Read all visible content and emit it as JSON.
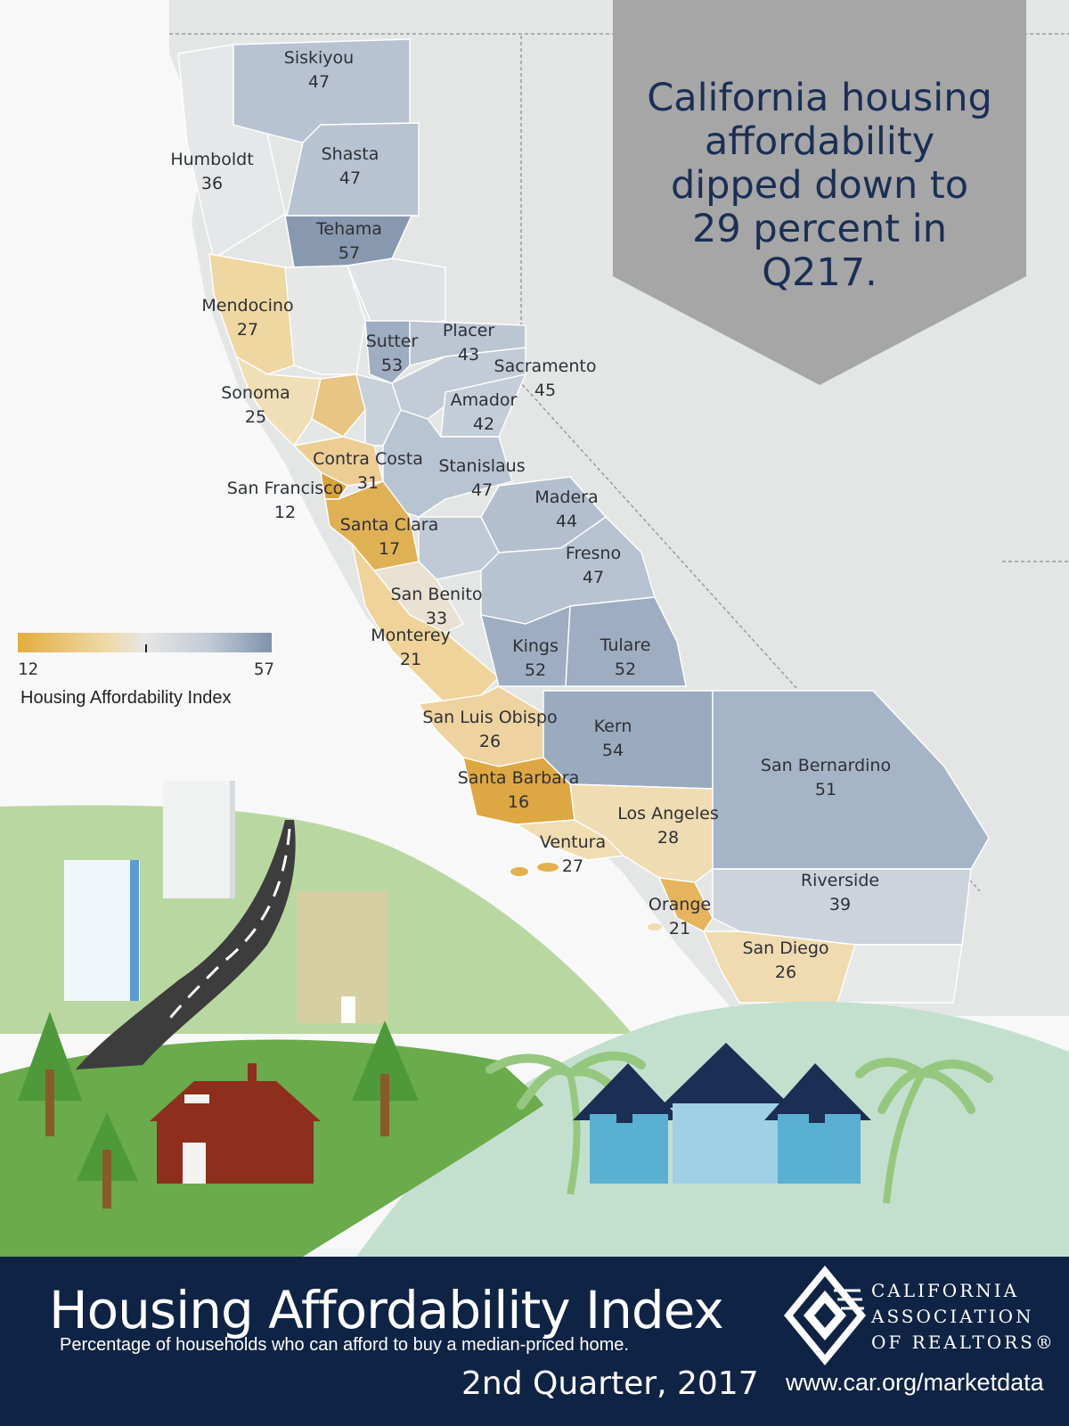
{
  "headline": {
    "lines": [
      "California housing",
      "affordability",
      "dipped down to",
      "29 percent in",
      "Q217."
    ]
  },
  "legend": {
    "min_label": "12",
    "max_label": "57",
    "title": "Housing Affordability Index",
    "low_color": "#e3ad3e",
    "mid_color": "#e6e6e4",
    "high_color": "#7f93ad"
  },
  "counties": [
    {
      "name": "Siskiyou",
      "value": "47"
    },
    {
      "name": "Humboldt",
      "value": "36"
    },
    {
      "name": "Shasta",
      "value": "47"
    },
    {
      "name": "Tehama",
      "value": "57"
    },
    {
      "name": "Mendocino",
      "value": "27"
    },
    {
      "name": "Placer",
      "value": "43"
    },
    {
      "name": "Sutter",
      "value": "53"
    },
    {
      "name": "Sacramento",
      "value": "45"
    },
    {
      "name": "Sonoma",
      "value": "25"
    },
    {
      "name": "Amador",
      "value": "42"
    },
    {
      "name": "Contra Costa",
      "value": "31"
    },
    {
      "name": "Stanislaus",
      "value": "47"
    },
    {
      "name": "San Francisco",
      "value": "12"
    },
    {
      "name": "Madera",
      "value": "44"
    },
    {
      "name": "Santa Clara",
      "value": "17"
    },
    {
      "name": "Fresno",
      "value": "47"
    },
    {
      "name": "San Benito",
      "value": "33"
    },
    {
      "name": "Monterey",
      "value": "21"
    },
    {
      "name": "Kings",
      "value": "52"
    },
    {
      "name": "Tulare",
      "value": "52"
    },
    {
      "name": "San Luis Obispo",
      "value": "26"
    },
    {
      "name": "Kern",
      "value": "54"
    },
    {
      "name": "Santa Barbara",
      "value": "16"
    },
    {
      "name": "San Bernardino",
      "value": "51"
    },
    {
      "name": "Los Angeles",
      "value": "28"
    },
    {
      "name": "Ventura",
      "value": "27"
    },
    {
      "name": "Riverside",
      "value": "39"
    },
    {
      "name": "Orange",
      "value": "21"
    },
    {
      "name": "San Diego",
      "value": "26"
    }
  ],
  "footer": {
    "title": "Housing Affordability Index",
    "subtitle": "Percentage of households who can afford to buy a median-priced home.",
    "period": "2nd Quarter, 2017"
  },
  "logo": {
    "line1": "CALIFORNIA",
    "line2": "ASSOCIATION",
    "line3": "OF REALTORS®",
    "url": "www.car.org/marketdata"
  },
  "colors": {
    "footer_bg": "#0f2444",
    "headline_box": "#a6a6a6",
    "headline_text": "#1b2f55"
  }
}
